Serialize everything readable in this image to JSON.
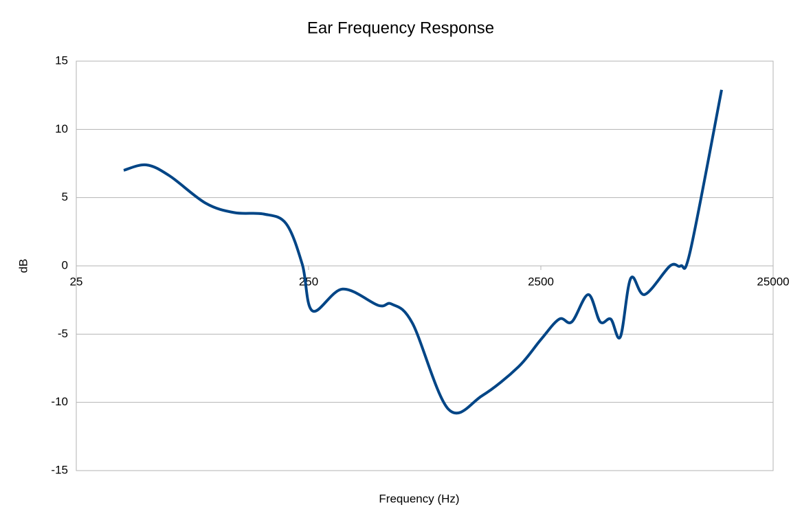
{
  "chart_data": {
    "type": "line",
    "title": "Ear Frequency Response",
    "x_label": "Frequency (Hz)",
    "y_label": "dB",
    "x": [
      40,
      50,
      63,
      90,
      120,
      160,
      200,
      235,
      260,
      350,
      500,
      570,
      700,
      1000,
      1400,
      2000,
      2500,
      3000,
      3400,
      4000,
      4500,
      5000,
      5500,
      6100,
      7000,
      9000,
      10000,
      11000,
      15000
    ],
    "values": [
      7.0,
      7.4,
      6.6,
      4.6,
      3.9,
      3.8,
      3.1,
      0.1,
      -3.3,
      -1.7,
      -2.9,
      -2.8,
      -4.2,
      -10.5,
      -9.5,
      -7.4,
      -5.4,
      -3.9,
      -4.1,
      -2.1,
      -4.1,
      -3.9,
      -5.2,
      -0.9,
      -2.1,
      0,
      0,
      1.1,
      12.9
    ],
    "color": "#004586",
    "logx": true,
    "grid": true,
    "xlim": [
      25,
      25000
    ],
    "xticks": [
      25,
      250,
      2500,
      25000
    ],
    "ylim": [
      -15,
      15
    ],
    "yticks": [
      -15,
      -10,
      -5,
      0,
      5,
      10,
      15
    ]
  }
}
